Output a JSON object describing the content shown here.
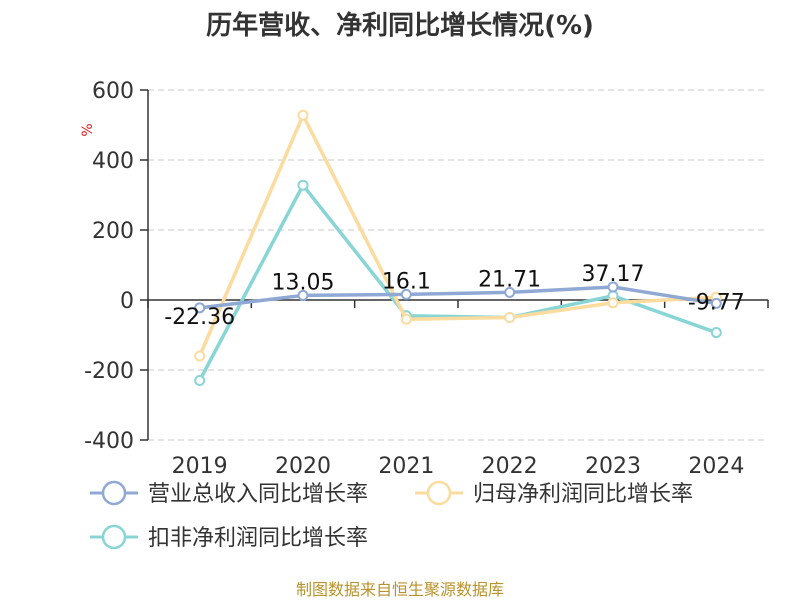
{
  "chart_data": {
    "type": "line",
    "title": "历年营收、净利同比增长情况(%)",
    "ylabel": "%",
    "xlabel": "",
    "categories": [
      "2019",
      "2020",
      "2021",
      "2022",
      "2023",
      "2024"
    ],
    "ylim": [
      -400,
      600
    ],
    "yticks": [
      600,
      400,
      200,
      0,
      -200,
      -400
    ],
    "grid": true,
    "legend_position": "bottom-left",
    "series": [
      {
        "name": "营业总收入同比增长率",
        "color": "#8fa9d4",
        "values": [
          -22.36,
          13.05,
          16.1,
          21.71,
          37.17,
          -9.77
        ],
        "labels": [
          "-22.36",
          "13.05",
          "16.1",
          "21.71",
          "37.17",
          "-9.77"
        ]
      },
      {
        "name": "归母净利润同比增长率",
        "color": "#fbdb9e",
        "values": [
          -160,
          528,
          -55,
          -50,
          -8,
          8
        ]
      },
      {
        "name": "扣非净利润同比增长率",
        "color": "#88d5d6",
        "values": [
          -230,
          328,
          -45,
          -50,
          12,
          -93
        ]
      }
    ]
  },
  "source": "制图数据来自恒生聚源数据库"
}
